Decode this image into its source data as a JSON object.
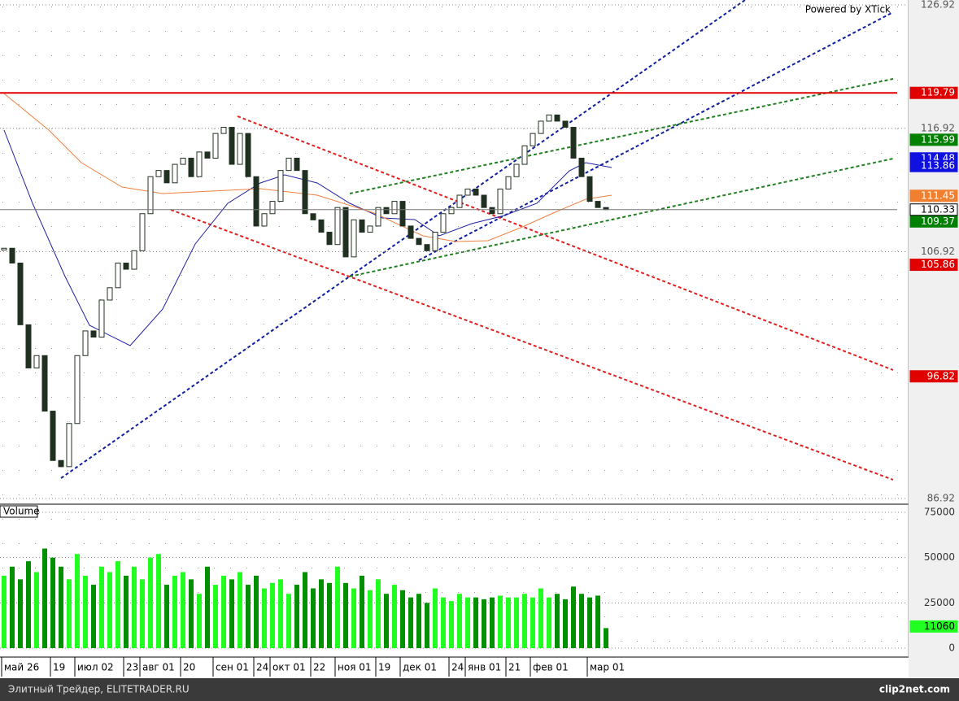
{
  "chart_data": {
    "type": "price",
    "credit": "Powered by XTick",
    "categories": [
      "май 26",
      null,
      null,
      null,
      null,
      null,
      "19",
      null,
      null,
      "июл 02",
      null,
      null,
      null,
      null,
      null,
      "23",
      null,
      "авг 01",
      null,
      null,
      null,
      null,
      "20",
      null,
      null,
      null,
      "сен 01",
      null,
      null,
      null,
      null,
      "24",
      null,
      "окт 01",
      null,
      null,
      null,
      null,
      "22",
      null,
      null,
      "ноя 01",
      null,
      null,
      null,
      null,
      "19",
      null,
      null,
      "дек 01",
      null,
      null,
      null,
      null,
      null,
      "24",
      null,
      "янв 01",
      null,
      null,
      null,
      null,
      "21",
      null,
      null,
      "фев 01",
      null,
      null,
      null,
      null,
      null,
      null,
      "мар 01",
      null,
      null
    ],
    "values": [
      107.2,
      106.0,
      101,
      97.5,
      98.5,
      94,
      90,
      89.5,
      93,
      98.5,
      100.5,
      100,
      103,
      104,
      106,
      105.5,
      107,
      110,
      113,
      113.5,
      112.5,
      114,
      114.5,
      113,
      115,
      114.5,
      116.5,
      117,
      114,
      116.5,
      113,
      109,
      110,
      111,
      113.5,
      114.5,
      113.5,
      110,
      109.5,
      108.5,
      107.5,
      110.5,
      106.5,
      109.5,
      108.5,
      109,
      110.5,
      110,
      111,
      109,
      108,
      107.5,
      107,
      108.5,
      110,
      110.5,
      111.5,
      112,
      111.5,
      110.5,
      110,
      112,
      113,
      114,
      115.5,
      116.5,
      117.5,
      118,
      117.5,
      117,
      114.5,
      113,
      111,
      110.5,
      110.33
    ],
    "ylim": [
      86.92,
      126.92
    ],
    "yticks": [
      86.92,
      106.92,
      116.92,
      126.92
    ],
    "price_tags": [
      {
        "value": 119.79,
        "color": "#e00000",
        "text_color": "#ffffff"
      },
      {
        "value": 115.99,
        "color": "#008000",
        "text_color": "#ffffff"
      },
      {
        "value": 114.48,
        "color": "#1010e0",
        "text_color": "#ffffff"
      },
      {
        "value": 113.86,
        "color": "#1010e0",
        "text_color": "#ffffff"
      },
      {
        "value": 111.45,
        "color": "#f08030",
        "text_color": "#ffffff"
      },
      {
        "value": 109.37,
        "color": "#008000",
        "text_color": "#ffffff"
      },
      {
        "value": 105.86,
        "color": "#e00000",
        "text_color": "#ffffff"
      },
      {
        "value": 96.82,
        "color": "#e00000",
        "text_color": "#ffffff"
      }
    ],
    "volume": {
      "label": "Volume",
      "values": [
        40000,
        45000,
        38000,
        48000,
        42000,
        55000,
        50000,
        45000,
        38000,
        52000,
        40000,
        35000,
        45000,
        42000,
        48000,
        40000,
        45000,
        38000,
        50000,
        52000,
        35000,
        40000,
        42000,
        38000,
        30000,
        45000,
        35000,
        40000,
        38000,
        42000,
        35000,
        40000,
        33000,
        36000,
        38000,
        30000,
        35000,
        42000,
        33000,
        38000,
        36000,
        45000,
        36000,
        33000,
        40000,
        32000,
        38000,
        30000,
        35000,
        32000,
        28000,
        30000,
        25000,
        33000,
        28000,
        26000,
        30000,
        28000,
        28000,
        27000,
        28000,
        29000,
        28000,
        28000,
        30000,
        28000,
        33000,
        28000,
        30000,
        27000,
        34000,
        30000,
        28000,
        29000,
        11060
      ],
      "ylim": [
        0,
        75000
      ],
      "yticks": [
        0,
        25000,
        50000,
        75000
      ]
    }
  },
  "footer": {
    "site": "Элитный Трейдер, ELITETRADER.RU",
    "brand": "clip2net.com"
  }
}
